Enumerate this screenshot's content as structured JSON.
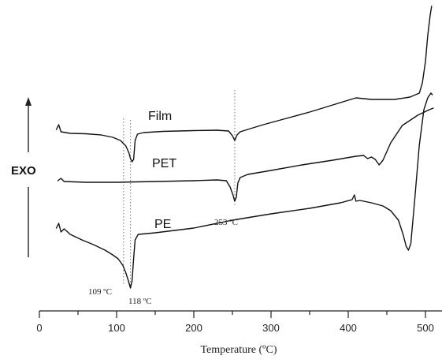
{
  "chart_data": {
    "type": "line",
    "title": "",
    "xlabel": "Temperature (ºC)",
    "ylabel": "EXO",
    "xlim": [
      0,
      550
    ],
    "xticks": [
      0,
      100,
      200,
      300,
      400,
      500
    ],
    "grid": false,
    "series": [
      {
        "name": "Film",
        "points": [
          [
            22,
            0.96
          ],
          [
            25,
            1.02
          ],
          [
            28,
            0.93
          ],
          [
            40,
            0.91
          ],
          [
            60,
            0.905
          ],
          [
            80,
            0.89
          ],
          [
            95,
            0.86
          ],
          [
            105,
            0.82
          ],
          [
            112,
            0.75
          ],
          [
            116,
            0.66
          ],
          [
            118,
            0.59
          ],
          [
            120,
            0.55
          ],
          [
            122,
            0.58
          ],
          [
            124,
            0.82
          ],
          [
            127,
            0.9
          ],
          [
            135,
            0.92
          ],
          [
            160,
            0.935
          ],
          [
            200,
            0.945
          ],
          [
            230,
            0.95
          ],
          [
            245,
            0.94
          ],
          [
            250,
            0.88
          ],
          [
            253,
            0.82
          ],
          [
            256,
            0.89
          ],
          [
            260,
            0.93
          ],
          [
            290,
            1.02
          ],
          [
            320,
            1.1
          ],
          [
            350,
            1.18
          ],
          [
            380,
            1.27
          ],
          [
            400,
            1.33
          ],
          [
            410,
            1.36
          ],
          [
            420,
            1.35
          ],
          [
            430,
            1.34
          ],
          [
            440,
            1.34
          ],
          [
            460,
            1.34
          ],
          [
            480,
            1.37
          ],
          [
            492,
            1.42
          ],
          [
            496,
            1.55
          ],
          [
            500,
            1.82
          ],
          [
            503,
            2.15
          ],
          [
            506,
            2.4
          ],
          [
            508,
            2.52
          ]
        ]
      },
      {
        "name": "PET",
        "points": [
          [
            24,
            0.0
          ],
          [
            28,
            0.03
          ],
          [
            32,
            -0.01
          ],
          [
            60,
            -0.02
          ],
          [
            100,
            -0.02
          ],
          [
            150,
            -0.01
          ],
          [
            200,
            0.0
          ],
          [
            230,
            0.01
          ],
          [
            242,
            0.0
          ],
          [
            247,
            -0.08
          ],
          [
            251,
            -0.19
          ],
          [
            253,
            -0.26
          ],
          [
            255,
            -0.21
          ],
          [
            257,
            -0.03
          ],
          [
            260,
            0.04
          ],
          [
            270,
            0.08
          ],
          [
            300,
            0.13
          ],
          [
            340,
            0.2
          ],
          [
            380,
            0.26
          ],
          [
            410,
            0.31
          ],
          [
            420,
            0.32
          ],
          [
            425,
            0.28
          ],
          [
            430,
            0.3
          ],
          [
            435,
            0.27
          ],
          [
            440,
            0.2
          ],
          [
            445,
            0.26
          ],
          [
            455,
            0.48
          ],
          [
            470,
            0.7
          ],
          [
            490,
            0.83
          ],
          [
            505,
            0.9
          ],
          [
            510,
            0.92
          ]
        ]
      },
      {
        "name": "PE",
        "points": [
          [
            22,
            -0.65
          ],
          [
            25,
            -0.59
          ],
          [
            28,
            -0.7
          ],
          [
            32,
            -0.66
          ],
          [
            40,
            -0.73
          ],
          [
            55,
            -0.8
          ],
          [
            70,
            -0.86
          ],
          [
            85,
            -0.93
          ],
          [
            95,
            -0.99
          ],
          [
            102,
            -1.04
          ],
          [
            108,
            -1.12
          ],
          [
            112,
            -1.22
          ],
          [
            115,
            -1.31
          ],
          [
            117,
            -1.38
          ],
          [
            118,
            -1.41
          ],
          [
            120,
            -1.32
          ],
          [
            122,
            -1.04
          ],
          [
            124,
            -0.8
          ],
          [
            128,
            -0.73
          ],
          [
            150,
            -0.71
          ],
          [
            200,
            -0.65
          ],
          [
            250,
            -0.55
          ],
          [
            300,
            -0.47
          ],
          [
            350,
            -0.4
          ],
          [
            390,
            -0.33
          ],
          [
            405,
            -0.29
          ],
          [
            408,
            -0.23
          ],
          [
            410,
            -0.31
          ],
          [
            415,
            -0.3
          ],
          [
            430,
            -0.33
          ],
          [
            445,
            -0.37
          ],
          [
            455,
            -0.43
          ],
          [
            465,
            -0.55
          ],
          [
            471,
            -0.73
          ],
          [
            475,
            -0.88
          ],
          [
            478,
            -0.93
          ],
          [
            481,
            -0.85
          ],
          [
            486,
            -0.3
          ],
          [
            492,
            0.4
          ],
          [
            498,
            0.85
          ],
          [
            503,
            1.0
          ],
          [
            507,
            1.06
          ],
          [
            509,
            1.04
          ]
        ]
      }
    ],
    "series_label_anchors": [
      {
        "name": "Film",
        "x": 195
      },
      {
        "name": "PET",
        "x": 200
      },
      {
        "name": "PE",
        "x": 200
      }
    ],
    "annotations": [
      {
        "text": "253 ºC",
        "x": 253
      },
      {
        "text": "109 ºC",
        "x": 109
      },
      {
        "text": "118 ºC",
        "x": 118
      }
    ],
    "guide_lines": [
      109,
      118,
      253
    ],
    "exo_arrow": "up"
  }
}
